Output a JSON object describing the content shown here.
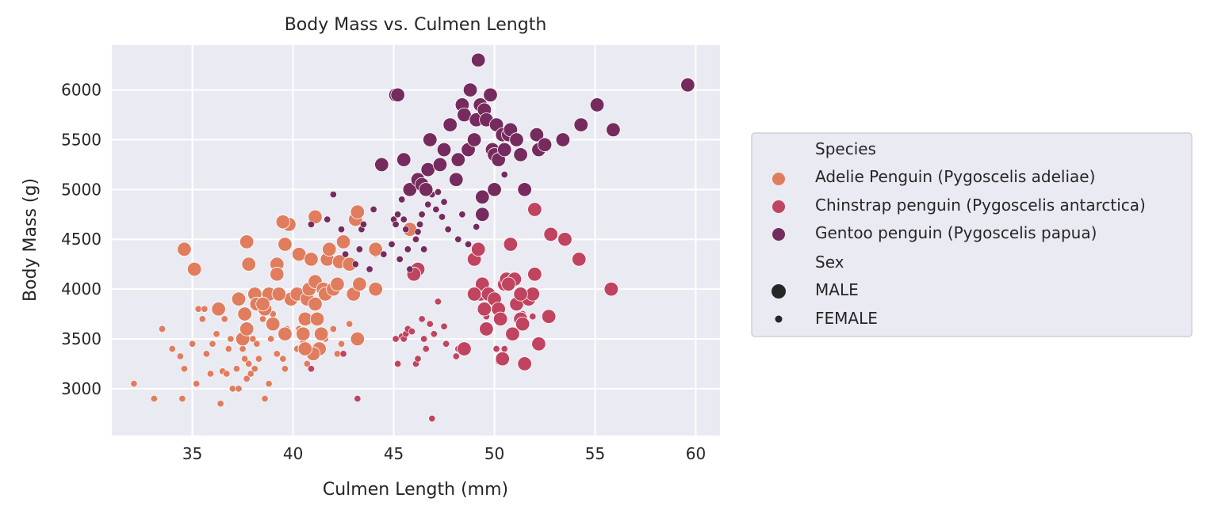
{
  "chart_data": {
    "type": "scatter",
    "title": "Body Mass vs. Culmen Length",
    "xlabel": "Culmen Length (mm)",
    "ylabel": "Body Mass (g)",
    "xlim": [
      31,
      61.2
    ],
    "ylim": [
      2530,
      6450
    ],
    "xticks": [
      35,
      40,
      45,
      50,
      55,
      60
    ],
    "yticks": [
      3000,
      3500,
      4000,
      4500,
      5000,
      5500,
      6000
    ],
    "grid": true,
    "legend_placement": "outside-right",
    "legend": {
      "hue_title": "Species",
      "size_title": "Sex",
      "size_entries": [
        {
          "name": "MALE",
          "size": "large"
        },
        {
          "name": "FEMALE",
          "size": "small"
        }
      ]
    },
    "series": [
      {
        "name": "Adelie Penguin (Pygoscelis adeliae)",
        "color": "#e07d5e",
        "male": [
          [
            34.6,
            4400
          ],
          [
            35.1,
            4200
          ],
          [
            36.3,
            3800
          ],
          [
            37.3,
            3900
          ],
          [
            37.7,
            4475
          ],
          [
            37.8,
            4250
          ],
          [
            37.6,
            3750
          ],
          [
            37.5,
            3500
          ],
          [
            37.7,
            3600
          ],
          [
            38.1,
            3950
          ],
          [
            38.2,
            3850
          ],
          [
            38.6,
            3800
          ],
          [
            38.8,
            3950
          ],
          [
            39.0,
            3650
          ],
          [
            39.2,
            4250
          ],
          [
            39.2,
            4150
          ],
          [
            39.6,
            4450
          ],
          [
            39.8,
            4650
          ],
          [
            39.5,
            4675
          ],
          [
            39.6,
            3550
          ],
          [
            39.9,
            3900
          ],
          [
            40.3,
            4350
          ],
          [
            40.2,
            3950
          ],
          [
            40.5,
            3550
          ],
          [
            40.6,
            3700
          ],
          [
            40.7,
            3900
          ],
          [
            40.8,
            4000
          ],
          [
            40.9,
            4300
          ],
          [
            41.1,
            4725
          ],
          [
            41.1,
            4075
          ],
          [
            41.1,
            3850
          ],
          [
            41.2,
            3700
          ],
          [
            41.3,
            3400
          ],
          [
            41.4,
            3550
          ],
          [
            41.5,
            4000
          ],
          [
            41.6,
            3950
          ],
          [
            41.7,
            4300
          ],
          [
            41.8,
            4400
          ],
          [
            42.0,
            4000
          ],
          [
            42.2,
            4050
          ],
          [
            42.3,
            4275
          ],
          [
            42.5,
            4475
          ],
          [
            42.8,
            4250
          ],
          [
            43.0,
            3950
          ],
          [
            43.1,
            4700
          ],
          [
            43.2,
            4775
          ],
          [
            43.3,
            4050
          ],
          [
            43.2,
            3500
          ],
          [
            44.1,
            4000
          ],
          [
            44.1,
            4400
          ],
          [
            45.8,
            4600
          ],
          [
            41.0,
            3350
          ],
          [
            40.6,
            3400
          ],
          [
            39.3,
            3950
          ],
          [
            38.5,
            3850
          ]
        ],
        "female": [
          [
            32.1,
            3050
          ],
          [
            33.1,
            2900
          ],
          [
            33.5,
            3600
          ],
          [
            34.0,
            3400
          ],
          [
            34.4,
            3325
          ],
          [
            34.5,
            2900
          ],
          [
            34.6,
            3200
          ],
          [
            35.0,
            3450
          ],
          [
            35.2,
            3050
          ],
          [
            35.3,
            3800
          ],
          [
            35.5,
            3700
          ],
          [
            35.6,
            3800
          ],
          [
            35.7,
            3350
          ],
          [
            35.9,
            3150
          ],
          [
            36.0,
            3450
          ],
          [
            36.2,
            3550
          ],
          [
            36.4,
            2850
          ],
          [
            36.5,
            3175
          ],
          [
            36.6,
            3700
          ],
          [
            36.7,
            3150
          ],
          [
            36.8,
            3400
          ],
          [
            36.9,
            3500
          ],
          [
            37.0,
            3000
          ],
          [
            37.2,
            3200
          ],
          [
            37.3,
            3000
          ],
          [
            37.5,
            3400
          ],
          [
            37.6,
            3300
          ],
          [
            37.7,
            3100
          ],
          [
            37.8,
            3250
          ],
          [
            37.9,
            3150
          ],
          [
            38.0,
            3500
          ],
          [
            38.1,
            3200
          ],
          [
            38.2,
            3450
          ],
          [
            38.3,
            3300
          ],
          [
            38.5,
            3700
          ],
          [
            38.6,
            2900
          ],
          [
            38.8,
            3050
          ],
          [
            38.9,
            3500
          ],
          [
            39.0,
            3750
          ],
          [
            39.2,
            3350
          ],
          [
            39.5,
            3300
          ],
          [
            39.6,
            3200
          ],
          [
            39.7,
            3600
          ],
          [
            40.2,
            3400
          ],
          [
            40.3,
            3600
          ],
          [
            40.5,
            3475
          ],
          [
            40.6,
            3950
          ],
          [
            40.7,
            3250
          ],
          [
            40.9,
            3200
          ],
          [
            41.1,
            3700
          ],
          [
            41.6,
            3500
          ],
          [
            42.0,
            3600
          ],
          [
            42.2,
            3350
          ],
          [
            42.4,
            3450
          ],
          [
            42.8,
            3650
          ],
          [
            44.1,
            4350
          ],
          [
            46.0,
            4200
          ],
          [
            46.0,
            4150
          ]
        ]
      },
      {
        "name": "Chinstrap penguin (Pygoscelis antarctica)",
        "color": "#c0445f",
        "male": [
          [
            46.2,
            4200
          ],
          [
            46.0,
            4150
          ],
          [
            48.5,
            3400
          ],
          [
            49.0,
            4300
          ],
          [
            49.2,
            4400
          ],
          [
            49.3,
            3950
          ],
          [
            49.4,
            4050
          ],
          [
            49.5,
            3800
          ],
          [
            49.6,
            3600
          ],
          [
            49.7,
            3950
          ],
          [
            50.0,
            3900
          ],
          [
            50.2,
            3800
          ],
          [
            50.3,
            3700
          ],
          [
            50.4,
            3300
          ],
          [
            50.5,
            4050
          ],
          [
            50.6,
            4100
          ],
          [
            50.8,
            4450
          ],
          [
            50.9,
            3550
          ],
          [
            51.0,
            4100
          ],
          [
            51.1,
            3850
          ],
          [
            51.3,
            3700
          ],
          [
            51.4,
            3650
          ],
          [
            51.5,
            3250
          ],
          [
            51.7,
            3900
          ],
          [
            51.9,
            3950
          ],
          [
            52.0,
            4150
          ],
          [
            52.2,
            3450
          ],
          [
            52.7,
            3725
          ],
          [
            52.8,
            4550
          ],
          [
            53.5,
            4500
          ],
          [
            54.2,
            4300
          ],
          [
            55.8,
            4000
          ],
          [
            49.0,
            3950
          ],
          [
            51.3,
            3950
          ],
          [
            50.7,
            4050
          ],
          [
            52.0,
            4800
          ]
        ],
        "female": [
          [
            40.9,
            3200
          ],
          [
            42.5,
            3350
          ],
          [
            43.2,
            2900
          ],
          [
            45.2,
            3250
          ],
          [
            45.4,
            3525
          ],
          [
            45.5,
            3500
          ],
          [
            45.6,
            3550
          ],
          [
            45.7,
            3600
          ],
          [
            45.9,
            3575
          ],
          [
            46.1,
            3250
          ],
          [
            46.4,
            3700
          ],
          [
            46.5,
            3500
          ],
          [
            46.6,
            3400
          ],
          [
            46.8,
            3650
          ],
          [
            46.9,
            2700
          ],
          [
            47.0,
            3550
          ],
          [
            47.5,
            3625
          ],
          [
            47.6,
            3450
          ],
          [
            48.1,
            3325
          ],
          [
            48.2,
            3400
          ],
          [
            49.6,
            3725
          ],
          [
            50.1,
            3400
          ],
          [
            50.2,
            3275
          ],
          [
            50.9,
            3525
          ],
          [
            51.4,
            3750
          ],
          [
            45.1,
            3500
          ],
          [
            46.2,
            3300
          ],
          [
            47.2,
            3875
          ],
          [
            50.5,
            3400
          ],
          [
            51.9,
            3725
          ]
        ]
      },
      {
        "name": "Gentoo penguin (Pygoscelis papua)",
        "color": "#762b5e",
        "male": [
          [
            44.4,
            5250
          ],
          [
            45.1,
            5950
          ],
          [
            45.5,
            5300
          ],
          [
            45.8,
            5000
          ],
          [
            46.2,
            5100
          ],
          [
            46.4,
            5050
          ],
          [
            46.6,
            5000
          ],
          [
            46.7,
            5200
          ],
          [
            46.8,
            5500
          ],
          [
            47.3,
            5250
          ],
          [
            47.5,
            5400
          ],
          [
            47.8,
            5650
          ],
          [
            48.1,
            5100
          ],
          [
            48.2,
            5300
          ],
          [
            48.4,
            5850
          ],
          [
            48.5,
            5750
          ],
          [
            48.7,
            5400
          ],
          [
            48.8,
            6000
          ],
          [
            49.0,
            5500
          ],
          [
            49.1,
            5700
          ],
          [
            49.2,
            6300
          ],
          [
            49.3,
            5850
          ],
          [
            49.5,
            5800
          ],
          [
            49.6,
            5700
          ],
          [
            49.8,
            5950
          ],
          [
            49.9,
            5400
          ],
          [
            50.0,
            5350
          ],
          [
            50.1,
            5650
          ],
          [
            50.2,
            5300
          ],
          [
            50.4,
            5550
          ],
          [
            50.5,
            5400
          ],
          [
            50.7,
            5550
          ],
          [
            50.8,
            5600
          ],
          [
            51.1,
            5500
          ],
          [
            51.3,
            5350
          ],
          [
            51.5,
            5000
          ],
          [
            52.1,
            5550
          ],
          [
            52.2,
            5400
          ],
          [
            52.5,
            5450
          ],
          [
            53.4,
            5500
          ],
          [
            54.3,
            5650
          ],
          [
            55.1,
            5850
          ],
          [
            55.9,
            5600
          ],
          [
            59.6,
            6050
          ],
          [
            50.0,
            5000
          ],
          [
            49.4,
            4925
          ],
          [
            49.4,
            4750
          ],
          [
            45.2,
            5950
          ]
        ],
        "female": [
          [
            40.9,
            4650
          ],
          [
            41.7,
            4700
          ],
          [
            42.0,
            4950
          ],
          [
            42.4,
            4600
          ],
          [
            42.6,
            4350
          ],
          [
            43.1,
            4250
          ],
          [
            43.3,
            4400
          ],
          [
            43.4,
            4600
          ],
          [
            43.5,
            4650
          ],
          [
            43.8,
            4200
          ],
          [
            44.0,
            4800
          ],
          [
            44.5,
            4350
          ],
          [
            44.9,
            4450
          ],
          [
            45.0,
            4700
          ],
          [
            45.1,
            4650
          ],
          [
            45.2,
            4750
          ],
          [
            45.3,
            4300
          ],
          [
            45.4,
            4900
          ],
          [
            45.5,
            4700
          ],
          [
            45.6,
            4600
          ],
          [
            45.7,
            4400
          ],
          [
            45.8,
            4200
          ],
          [
            46.1,
            4500
          ],
          [
            46.2,
            4575
          ],
          [
            46.3,
            4650
          ],
          [
            46.4,
            4750
          ],
          [
            46.5,
            4400
          ],
          [
            46.7,
            4850
          ],
          [
            46.9,
            4950
          ],
          [
            47.1,
            4800
          ],
          [
            47.2,
            4975
          ],
          [
            47.4,
            4725
          ],
          [
            47.5,
            4875
          ],
          [
            47.7,
            4600
          ],
          [
            48.2,
            4500
          ],
          [
            48.4,
            4750
          ],
          [
            48.7,
            4450
          ],
          [
            49.1,
            4625
          ],
          [
            50.5,
            5150
          ],
          [
            45.7,
            5000
          ]
        ]
      }
    ]
  }
}
